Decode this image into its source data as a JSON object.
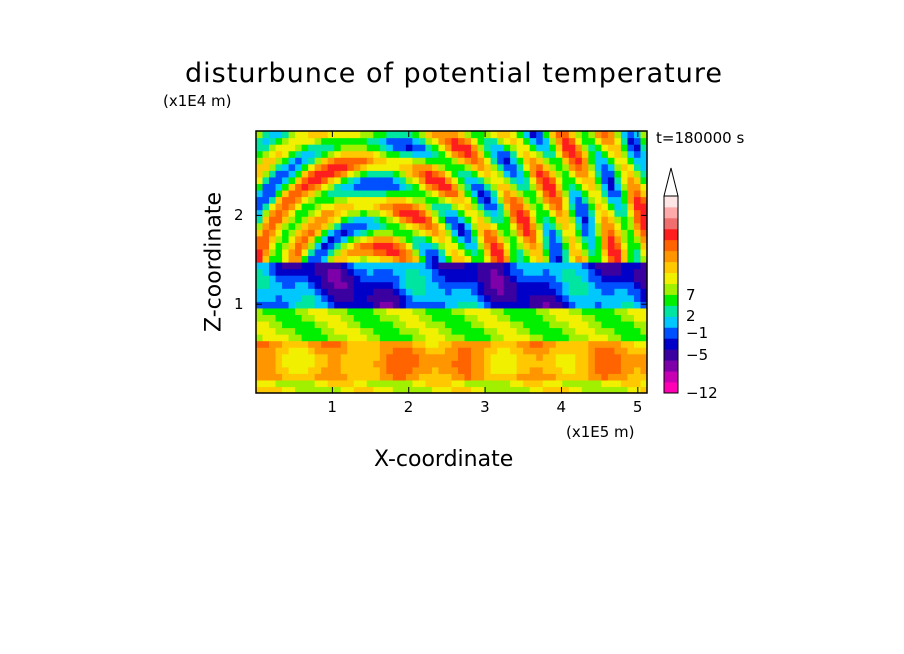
{
  "chart_data": {
    "type": "heatmap",
    "title": "disturbunce of potential temperature",
    "time_label": "t=180000 s",
    "xlabel": "X-coordinate",
    "ylabel": "Z-coordinate",
    "x_scale_label": "(x1E5 m)",
    "z_scale_label": "(x1E4 m)",
    "xlim": [
      0,
      5.12
    ],
    "ylim": [
      0,
      2.95
    ],
    "x_ticks": [
      "1",
      "2",
      "3",
      "4",
      "5"
    ],
    "x_tick_values": [
      1,
      2,
      3,
      4,
      5
    ],
    "y_ticks": [
      "1",
      "2"
    ],
    "y_tick_values": [
      1,
      2
    ],
    "colorbar": {
      "levels": [
        -12,
        -5,
        -1,
        2,
        7
      ],
      "level_labels": [
        "−12",
        "−5",
        "−1",
        "2",
        "7"
      ],
      "extend": "max",
      "colors": [
        "#ff00b4",
        "#c800b4",
        "#7d00a8",
        "#3a00a0",
        "#0000c8",
        "#0050ff",
        "#00c8ff",
        "#00e6a0",
        "#00f000",
        "#a0f000",
        "#f0f000",
        "#ffc800",
        "#ff9600",
        "#ff6400",
        "#ff1e1e",
        "#f06e6e",
        "#ffaaaa",
        "#ffe6e6"
      ]
    },
    "structure": [
      {
        "z_range": [
          0,
          0.15
        ],
        "value": 0,
        "note": "surface layer, mostly green/yellow"
      },
      {
        "z_range": [
          0.15,
          0.6
        ],
        "value": 3,
        "note": "warm layer, yellow/orange"
      },
      {
        "z_range": [
          0.6,
          0.95
        ],
        "value": 0,
        "note": "green layer"
      },
      {
        "z_range": [
          0.95,
          1.45
        ],
        "value": -6,
        "note": "cold band, blue"
      },
      {
        "z_range": [
          1.45,
          2.95
        ],
        "value": 4,
        "note": "alternating warm/cold wave pattern, fan of waves centered near x=1.3"
      }
    ]
  }
}
